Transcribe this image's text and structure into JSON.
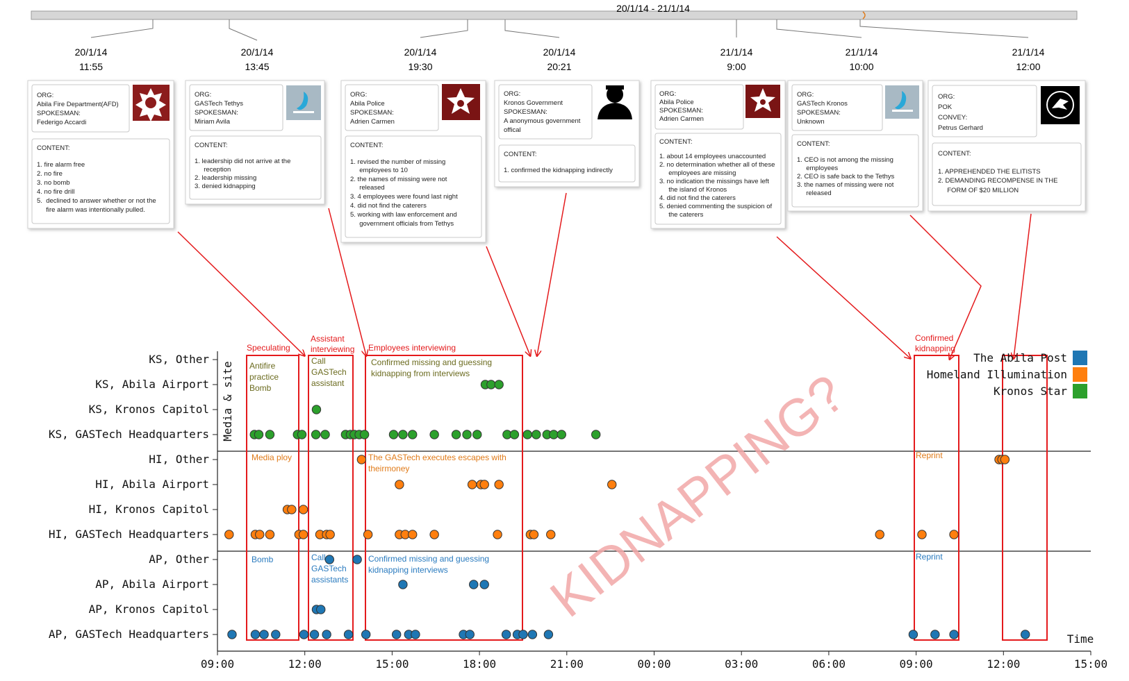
{
  "timeline": {
    "range_label": "20/1/14 - 21/1/14",
    "stamps": [
      {
        "date": "20/1/14",
        "time": "11:55"
      },
      {
        "date": "20/1/14",
        "time": "13:45"
      },
      {
        "date": "20/1/14",
        "time": "19:30"
      },
      {
        "date": "20/1/14",
        "time": "20:21"
      },
      {
        "date": "21/1/14",
        "time": "9:00"
      },
      {
        "date": "21/1/14",
        "time": "10:00"
      },
      {
        "date": "21/1/14",
        "time": "12:00"
      }
    ]
  },
  "cards": [
    {
      "org": [
        "ORG:",
        "Abila Fire Department(AFD)",
        "SPOKESMAN:",
        "Federigo Accardi"
      ],
      "logo": "abila-fire-logo",
      "content": [
        "CONTENT:",
        "",
        "1.  fire alarm free",
        "2.  no fire",
        "3.  no bomb",
        "4.  no fire drill",
        "5.  declined to answer whether or not the",
        "     fire alarm was intentionally pulled."
      ]
    },
    {
      "org": [
        "ORG:",
        "GASTech Tethys",
        "SPOKESMAN:",
        "Miriam Avila"
      ],
      "logo": "gastech-logo",
      "content": [
        "CONTENT:",
        "",
        "1.  leadership did not arrive at the",
        "     reception",
        "2.  leadership missing",
        "3.  denied kidnapping"
      ]
    },
    {
      "org": [
        "ORG:",
        "Abila Police",
        "SPOKESMAN:",
        "Adrien Carmen"
      ],
      "logo": "police-star-logo",
      "content": [
        "CONTENT:",
        "",
        "1.  revised the number of missing",
        "     employees to 10",
        "2.  the names of missing were not",
        "     released",
        "3.  4 employees were found last night",
        "4.  did not find the caterers",
        "5.  working with law enforcement and",
        "     government officials from Tethys"
      ]
    },
    {
      "org": [
        "ORG:",
        "Kronos Government",
        "SPOKESMAN:",
        "A anonymous government",
        "offical"
      ],
      "logo": "anonymous-person-icon",
      "content": [
        "CONTENT:",
        "",
        "1.  confirmed the kidnapping indirectly"
      ]
    },
    {
      "org": [
        "ORG:",
        "Abila Police",
        "SPOKESMAN:",
        "Adrien Carmen"
      ],
      "logo": "police-star-logo",
      "content": [
        "CONTENT:",
        "",
        "1.  about 14 employees unaccounted",
        "2.  no determination whether all of these",
        "     employees are missing",
        "3.  no indication the missings have left",
        "     the island of Kronos",
        "4.  did not find the caterers",
        "5.  denied commenting the suspicion of",
        "     the caterers"
      ]
    },
    {
      "org": [
        "ORG:",
        "GASTech Kronos",
        "SPOKESMAN:",
        "Unknown"
      ],
      "logo": "gastech-logo",
      "content": [
        "CONTENT:",
        "",
        "1.  CEO is not among the missing",
        "     employees",
        "2.  CEO is safe back to the Tethys",
        "3.  the names of missing were not",
        "     released"
      ]
    },
    {
      "org": [
        "ORG:",
        "POK",
        "CONVEY:",
        "Petrus Gerhard"
      ],
      "logo": "pok-logo",
      "content": [
        "CONTENT:",
        "",
        "1.  APPREHENDED THE ELITISTS",
        "2.  DEMANDING RECOMPENSE IN THE",
        "     FORM OF $20 MILLION"
      ]
    }
  ],
  "annotations": {
    "headers": [
      "Speculating",
      "Assistant",
      "interviewing",
      "Employees interviewing",
      "Confirmed",
      "kidnapping"
    ],
    "ks": [
      "Antifire",
      "practice",
      "Bomb",
      "Call",
      "GASTech",
      "assistant",
      "Confirmed missing and guessing",
      "kidnapping from interviews"
    ],
    "hi": [
      "Media ploy",
      "The GASTech executes escapes with",
      "theirmoney",
      "Reprint"
    ],
    "ap": [
      "Bomb",
      "Call",
      "GASTech",
      "assistants",
      "Confirmed missing and guessing",
      "kidnapping interviews",
      "Reprint"
    ],
    "watermark": "KIDNAPPING?"
  },
  "colors": {
    "abila_post": "#1f77b4",
    "homeland_illumination": "#ff7f0e",
    "kronos_star": "#2ca02c",
    "annotation_red": "#e41a1c",
    "ks_text": "#6b6b1f",
    "hi_text": "#e07b1a",
    "ap_text": "#2a7bbf",
    "watermark": "#f2a7a7"
  },
  "chart_data": {
    "type": "scatter",
    "ylabel": "Media & site",
    "xlabel": "Time",
    "x_ticks": [
      "09:00",
      "12:00",
      "15:00",
      "18:00",
      "21:00",
      "00:00",
      "03:00",
      "06:00",
      "09:00",
      "12:00",
      "15:00"
    ],
    "x_range_hours": [
      0,
      30
    ],
    "rows": [
      "KS, Other",
      "KS, Abila Airport",
      "KS, Kronos Capitol",
      "KS, GASTech Headquarters",
      "HI, Other",
      "HI, Abila Airport",
      "HI, Kronos Capitol",
      "HI, GASTech Headquarters",
      "AP, Other",
      "AP, Abila Airport",
      "AP, Kronos Capitol",
      "AP, GASTech Headquarters"
    ],
    "legend": [
      {
        "name": "The Abila Post",
        "key": "abila_post"
      },
      {
        "name": "Homeland Illumination",
        "key": "homeland_illumination"
      },
      {
        "name": "Kronos Star",
        "key": "kronos_star"
      }
    ],
    "series": [
      {
        "name": "Kronos Star",
        "color_key": "kronos_star",
        "points": [
          [
            1,
            9.2
          ],
          [
            1,
            9.4
          ],
          [
            1,
            9.67
          ],
          [
            2,
            3.4
          ],
          [
            3,
            1.27
          ],
          [
            3,
            1.42
          ],
          [
            3,
            1.8
          ],
          [
            3,
            2.75
          ],
          [
            3,
            2.9
          ],
          [
            3,
            3.38
          ],
          [
            3,
            3.7
          ],
          [
            3,
            4.4
          ],
          [
            3,
            4.57
          ],
          [
            3,
            4.7
          ],
          [
            3,
            4.87
          ],
          [
            3,
            5.05
          ],
          [
            3,
            6.05
          ],
          [
            3,
            6.37
          ],
          [
            3,
            6.7
          ],
          [
            3,
            7.45
          ],
          [
            3,
            8.2
          ],
          [
            3,
            8.57
          ],
          [
            3,
            8.92
          ],
          [
            3,
            9.95
          ],
          [
            3,
            10.2
          ],
          [
            3,
            10.65
          ],
          [
            3,
            10.95
          ],
          [
            3,
            11.32
          ],
          [
            3,
            11.55
          ],
          [
            3,
            11.82
          ],
          [
            3,
            13.0
          ]
        ]
      },
      {
        "name": "Homeland Illumination",
        "color_key": "homeland_illumination",
        "points": [
          [
            4,
            4.95
          ],
          [
            4,
            26.85
          ],
          [
            4,
            26.95
          ],
          [
            4,
            27.05
          ],
          [
            5,
            6.25
          ],
          [
            5,
            8.75
          ],
          [
            5,
            9.05
          ],
          [
            5,
            9.17
          ],
          [
            5,
            9.67
          ],
          [
            5,
            13.55
          ],
          [
            6,
            2.4
          ],
          [
            6,
            2.55
          ],
          [
            6,
            2.95
          ],
          [
            7,
            0.4
          ],
          [
            7,
            1.3
          ],
          [
            7,
            1.45
          ],
          [
            7,
            1.8
          ],
          [
            7,
            2.8
          ],
          [
            7,
            2.95
          ],
          [
            7,
            3.52
          ],
          [
            7,
            3.75
          ],
          [
            7,
            3.87
          ],
          [
            7,
            5.17
          ],
          [
            7,
            6.25
          ],
          [
            7,
            6.45
          ],
          [
            7,
            6.7
          ],
          [
            7,
            7.45
          ],
          [
            7,
            9.62
          ],
          [
            7,
            10.75
          ],
          [
            7,
            10.87
          ],
          [
            7,
            11.45
          ],
          [
            7,
            22.75
          ],
          [
            7,
            24.2
          ],
          [
            7,
            25.3
          ]
        ]
      },
      {
        "name": "The Abila Post",
        "color_key": "abila_post",
        "points": [
          [
            8,
            3.85
          ],
          [
            8,
            4.8
          ],
          [
            9,
            6.37
          ],
          [
            9,
            8.8
          ],
          [
            9,
            9.17
          ],
          [
            10,
            3.4
          ],
          [
            10,
            3.55
          ],
          [
            11,
            0.5
          ],
          [
            11,
            1.3
          ],
          [
            11,
            1.6
          ],
          [
            11,
            2.0
          ],
          [
            11,
            2.97
          ],
          [
            11,
            3.33
          ],
          [
            11,
            3.75
          ],
          [
            11,
            4.5
          ],
          [
            11,
            5.1
          ],
          [
            11,
            6.15
          ],
          [
            11,
            6.57
          ],
          [
            11,
            6.8
          ],
          [
            11,
            8.45
          ],
          [
            11,
            8.67
          ],
          [
            11,
            9.92
          ],
          [
            11,
            10.3
          ],
          [
            11,
            10.5
          ],
          [
            11,
            10.82
          ],
          [
            11,
            11.37
          ],
          [
            11,
            23.9
          ],
          [
            11,
            24.65
          ],
          [
            11,
            25.3
          ],
          [
            11,
            27.75
          ]
        ]
      }
    ]
  }
}
